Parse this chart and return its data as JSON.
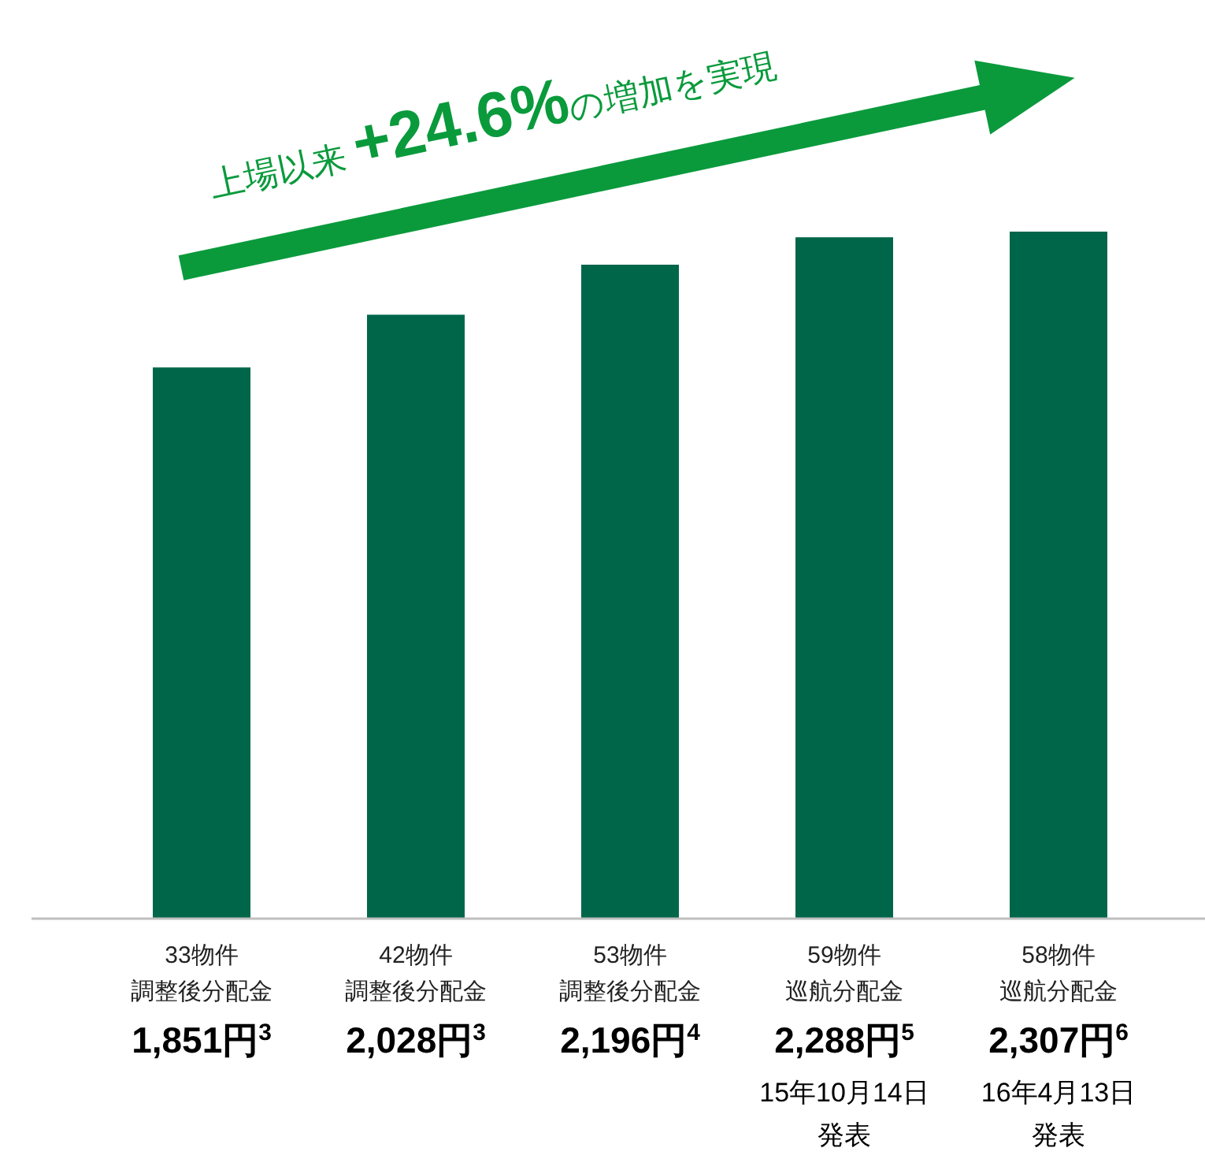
{
  "chart_data": {
    "type": "bar",
    "title": "上場以来 **+24.6%**の増加を実現",
    "categories": [
      "33物件調整後分配金",
      "42物件調整後分配金",
      "53物件調整後分配金",
      "59物件巡航分配金",
      "58物件巡航分配金"
    ],
    "values": [
      1851,
      2028,
      2196,
      2288,
      2307
    ],
    "value_labels": [
      "1,851円$^{3}$",
      "2,028円$^{3}$",
      "2,196円$^{4}$",
      "2,288円$^{5}$",
      "2,307円$^{6}$"
    ],
    "color": "#00664a",
    "annotations": [
      "15年10月14日発表",
      "16年4月13日発表"
    ]
  }
}
